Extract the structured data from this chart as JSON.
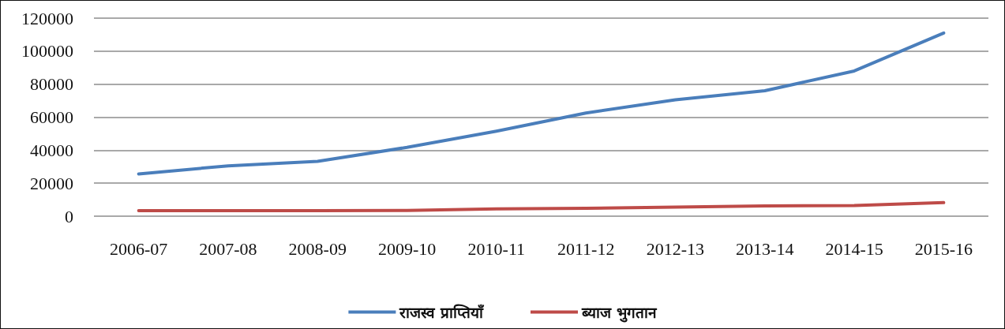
{
  "chart_data": {
    "type": "line",
    "categories": [
      "2006-07",
      "2007-08",
      "2008-09",
      "2009-10",
      "2010-11",
      "2011-12",
      "2012-13",
      "2013-14",
      "2014-15",
      "2015-16"
    ],
    "series": [
      {
        "name": "राजस्व प्राप्तियाँ",
        "color": "#4a7ebb",
        "values": [
          25600,
          30500,
          33200,
          41700,
          51500,
          62500,
          70500,
          76000,
          88000,
          111000
        ]
      },
      {
        "name": "ब्याज भुगतान",
        "color": "#be4b48",
        "values": [
          3300,
          3400,
          3400,
          3500,
          4400,
          4800,
          5500,
          6200,
          6500,
          8200
        ]
      }
    ],
    "ylim": [
      0,
      120000
    ],
    "yticks": [
      0,
      20000,
      40000,
      60000,
      80000,
      100000,
      120000
    ],
    "grid": "y",
    "legend": "bottom",
    "marker": "none",
    "line_style": "solid"
  }
}
